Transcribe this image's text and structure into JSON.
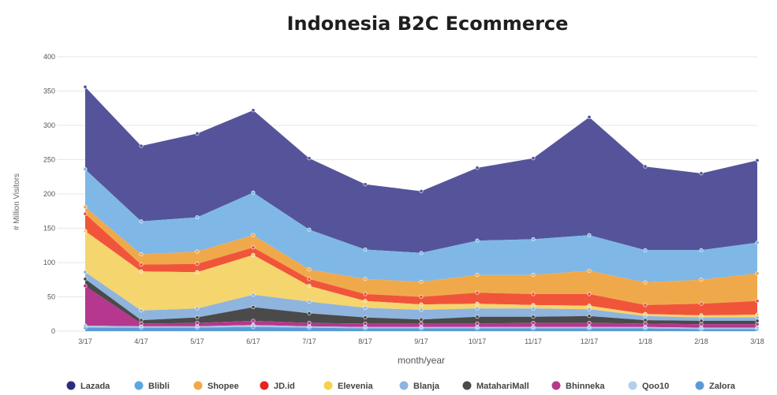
{
  "chart_data": {
    "type": "area",
    "stacked": true,
    "title": "Indonesia B2C Ecommerce",
    "xlabel": "month/year",
    "ylabel": "# Million Visitors",
    "ylim": [
      0,
      400
    ],
    "yticks": [
      0,
      50,
      100,
      150,
      200,
      250,
      300,
      350,
      400
    ],
    "grid": true,
    "legend_position": "bottom",
    "categories": [
      "3/17",
      "4/17",
      "5/17",
      "6/17",
      "7/17",
      "8/17",
      "9/17",
      "10/17",
      "11/17",
      "12/17",
      "1/18",
      "2/18",
      "3/18"
    ],
    "series": [
      {
        "name": "Zalora",
        "color": "#5b9bd5",
        "values": [
          5,
          5,
          5,
          6,
          5,
          4,
          4,
          4,
          4,
          4,
          4,
          3,
          3
        ]
      },
      {
        "name": "Qoo10",
        "color": "#a9c7e8",
        "values": [
          3,
          2,
          2,
          3,
          2,
          2,
          2,
          2,
          2,
          2,
          2,
          2,
          2
        ]
      },
      {
        "name": "Bhinneka",
        "color": "#b5378e",
        "values": [
          58,
          4,
          5,
          6,
          5,
          5,
          5,
          5,
          6,
          6,
          5,
          5,
          5
        ]
      },
      {
        "name": "MatahariMall",
        "color": "#4a4a4a",
        "values": [
          10,
          5,
          8,
          20,
          14,
          9,
          6,
          10,
          9,
          10,
          5,
          5,
          5
        ]
      },
      {
        "name": "Blanja",
        "color": "#8fb4de",
        "values": [
          10,
          14,
          13,
          18,
          17,
          14,
          14,
          12,
          12,
          10,
          6,
          5,
          5
        ]
      },
      {
        "name": "Elevenia",
        "color": "#f5d56e",
        "values": [
          60,
          57,
          53,
          58,
          23,
          10,
          8,
          7,
          5,
          5,
          3,
          3,
          4
        ]
      },
      {
        "name": "JD.id",
        "color": "#f0553a",
        "values": [
          25,
          10,
          12,
          11,
          10,
          10,
          11,
          16,
          16,
          17,
          13,
          17,
          20
        ]
      },
      {
        "name": "Shopee",
        "color": "#f0a94a",
        "values": [
          10,
          15,
          18,
          18,
          14,
          22,
          22,
          26,
          28,
          34,
          33,
          35,
          40
        ]
      },
      {
        "name": "Blibli",
        "color": "#7fb8e6",
        "values": [
          55,
          48,
          50,
          62,
          58,
          43,
          42,
          50,
          52,
          52,
          47,
          43,
          45
        ]
      },
      {
        "name": "Lazada",
        "color": "#55549a",
        "values": [
          120,
          110,
          122,
          120,
          104,
          95,
          90,
          106,
          118,
          172,
          122,
          112,
          120
        ]
      }
    ],
    "legend": [
      {
        "name": "Lazada",
        "color": "#2b2e7a"
      },
      {
        "name": "Blibli",
        "color": "#5ba7e0"
      },
      {
        "name": "Shopee",
        "color": "#f0a94a"
      },
      {
        "name": "JD.id",
        "color": "#e52420"
      },
      {
        "name": "Elevenia",
        "color": "#f5d24c"
      },
      {
        "name": "Blanja",
        "color": "#8fb4de"
      },
      {
        "name": "MatahariMall",
        "color": "#4a4a4a"
      },
      {
        "name": "Bhinneka",
        "color": "#b5378e"
      },
      {
        "name": "Qoo10",
        "color": "#b4cfe9"
      },
      {
        "name": "Zalora",
        "color": "#5b9bd5"
      }
    ]
  }
}
